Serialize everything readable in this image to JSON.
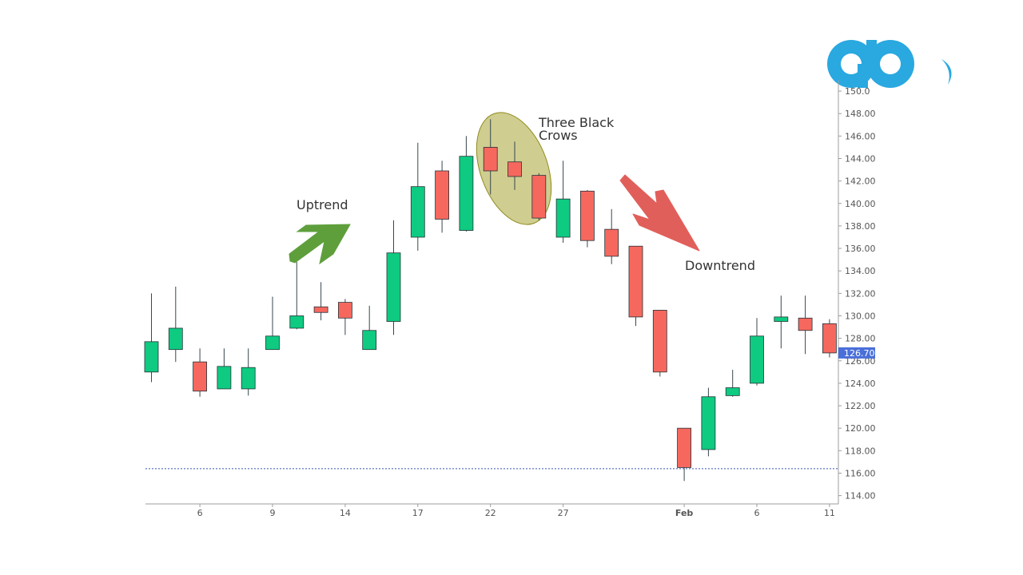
{
  "chart_data": {
    "type": "candlestick",
    "ylim": [
      113,
      151.5
    ],
    "y_ticks": [
      "114.00",
      "116.00",
      "118.00",
      "120.00",
      "122.00",
      "124.00",
      "126.00",
      "128.00",
      "130.00",
      "132.00",
      "134.00",
      "136.00",
      "138.00",
      "140.00",
      "142.00",
      "144.00",
      "146.00",
      "148.00",
      "150.0"
    ],
    "x_tick_labels": [
      {
        "index": 2,
        "label": "6"
      },
      {
        "index": 5,
        "label": "9"
      },
      {
        "index": 8,
        "label": "14"
      },
      {
        "index": 11,
        "label": "17"
      },
      {
        "index": 14,
        "label": "22"
      },
      {
        "index": 17,
        "label": "27"
      },
      {
        "index": 22,
        "label": "Feb",
        "bold": true
      },
      {
        "index": 25,
        "label": "6"
      },
      {
        "index": 28,
        "label": "11"
      }
    ],
    "candles": [
      {
        "o": 125.0,
        "h": 132.0,
        "l": 124.1,
        "c": 127.7
      },
      {
        "o": 127.0,
        "h": 132.6,
        "l": 125.9,
        "c": 128.9
      },
      {
        "o": 125.9,
        "h": 127.1,
        "l": 122.8,
        "c": 123.3
      },
      {
        "o": 123.5,
        "h": 127.1,
        "l": 123.5,
        "c": 125.5
      },
      {
        "o": 123.5,
        "h": 127.1,
        "l": 122.9,
        "c": 125.4
      },
      {
        "o": 127.0,
        "h": 131.7,
        "l": 127.0,
        "c": 128.2
      },
      {
        "o": 128.9,
        "h": 134.8,
        "l": 128.8,
        "c": 130.0
      },
      {
        "o": 130.8,
        "h": 133.0,
        "l": 129.6,
        "c": 130.3
      },
      {
        "o": 131.2,
        "h": 131.5,
        "l": 128.3,
        "c": 129.8
      },
      {
        "o": 127.0,
        "h": 130.9,
        "l": 127.0,
        "c": 128.7
      },
      {
        "o": 129.5,
        "h": 138.5,
        "l": 128.3,
        "c": 135.6
      },
      {
        "o": 137.0,
        "h": 145.4,
        "l": 135.8,
        "c": 141.5
      },
      {
        "o": 142.9,
        "h": 143.8,
        "l": 137.4,
        "c": 138.6
      },
      {
        "o": 137.6,
        "h": 146.0,
        "l": 137.5,
        "c": 144.2
      },
      {
        "o": 145.0,
        "h": 147.5,
        "l": 140.8,
        "c": 142.9
      },
      {
        "o": 143.7,
        "h": 145.5,
        "l": 141.2,
        "c": 142.4
      },
      {
        "o": 142.5,
        "h": 142.7,
        "l": 138.5,
        "c": 138.7
      },
      {
        "o": 137.0,
        "h": 143.8,
        "l": 136.5,
        "c": 140.4
      },
      {
        "o": 141.1,
        "h": 141.2,
        "l": 136.1,
        "c": 136.7
      },
      {
        "o": 137.7,
        "h": 139.5,
        "l": 134.6,
        "c": 135.3
      },
      {
        "o": 136.2,
        "h": 136.2,
        "l": 129.1,
        "c": 129.9
      },
      {
        "o": 130.5,
        "h": 130.5,
        "l": 124.6,
        "c": 125.0
      },
      {
        "o": 120.0,
        "h": 120.0,
        "l": 115.3,
        "c": 116.5
      },
      {
        "o": 118.1,
        "h": 123.6,
        "l": 117.5,
        "c": 122.8
      },
      {
        "o": 122.9,
        "h": 125.2,
        "l": 122.8,
        "c": 123.6
      },
      {
        "o": 124.0,
        "h": 129.8,
        "l": 123.8,
        "c": 128.2
      },
      {
        "o": 129.5,
        "h": 131.8,
        "l": 127.1,
        "c": 129.9
      },
      {
        "o": 129.8,
        "h": 131.8,
        "l": 126.6,
        "c": 128.7
      },
      {
        "o": 129.3,
        "h": 129.7,
        "l": 126.3,
        "c": 126.7
      }
    ],
    "current_price": "126.70",
    "reference_line": 116.4,
    "colors": {
      "up": "#0ecb81",
      "down": "#f6685e",
      "wick": "#37474f",
      "price_label": "#4a6fd9",
      "reference_line": "#3f51b5"
    },
    "annotations": {
      "uptrend": "Uptrend",
      "downtrend": "Downtrend",
      "pattern_line1": "Three Black",
      "pattern_line2": "Crows"
    },
    "pattern_candles": [
      14,
      15,
      16
    ]
  },
  "brand": {
    "logo_icon": "logo-icon",
    "color": "#2aa8e0"
  }
}
